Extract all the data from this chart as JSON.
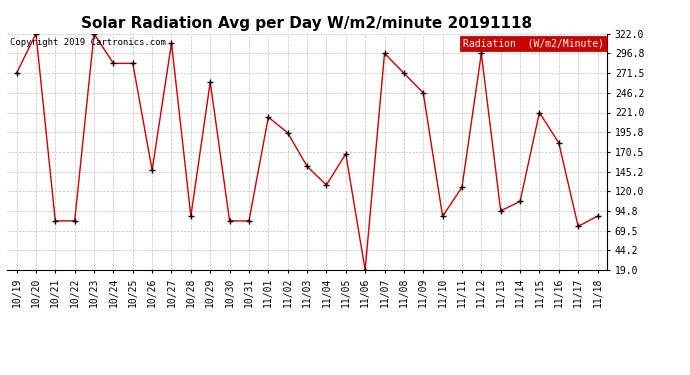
{
  "title": "Solar Radiation Avg per Day W/m2/minute 20191118",
  "copyright_text": "Copyright 2019 Cartronics.com",
  "legend_label": "Radiation  (W/m2/Minute)",
  "dates": [
    "10/19",
    "10/20",
    "10/21",
    "10/22",
    "10/23",
    "10/24",
    "10/25",
    "10/26",
    "10/27",
    "10/28",
    "10/29",
    "10/30",
    "10/31",
    "11/01",
    "11/02",
    "11/03",
    "11/04",
    "11/05",
    "11/06",
    "11/07",
    "11/08",
    "11/09",
    "11/10",
    "11/11",
    "11/12",
    "11/13",
    "11/14",
    "11/15",
    "11/16",
    "11/17",
    "11/18"
  ],
  "values": [
    271.5,
    322.0,
    82.0,
    82.0,
    322.0,
    284.0,
    284.0,
    147.0,
    310.0,
    88.0,
    260.0,
    82.0,
    82.0,
    215.0,
    195.0,
    152.0,
    128.0,
    168.0,
    19.0,
    296.8,
    271.5,
    246.2,
    88.0,
    125.0,
    296.8,
    94.8,
    107.0,
    221.0,
    182.0,
    75.0,
    88.0
  ],
  "ylim_min": 19.0,
  "ylim_max": 322.0,
  "ytick_values": [
    322.0,
    296.8,
    271.5,
    246.2,
    221.0,
    195.8,
    170.5,
    145.2,
    120.0,
    94.8,
    69.5,
    44.2,
    19.0
  ],
  "ytick_labels": [
    "322.0",
    "296.8",
    "271.5",
    "246.2",
    "221.0",
    "195.8",
    "170.5",
    "145.2",
    "120.0",
    "94.8",
    "69.5",
    "44.2",
    "19.0"
  ],
  "line_color": "#cc0000",
  "marker_color": "#000000",
  "bg_color": "#ffffff",
  "grid_color": "#bbbbbb",
  "title_fontsize": 11,
  "tick_fontsize": 7,
  "legend_bg": "#cc0000",
  "legend_text_color": "#ffffff",
  "copyright_fontsize": 6.5
}
